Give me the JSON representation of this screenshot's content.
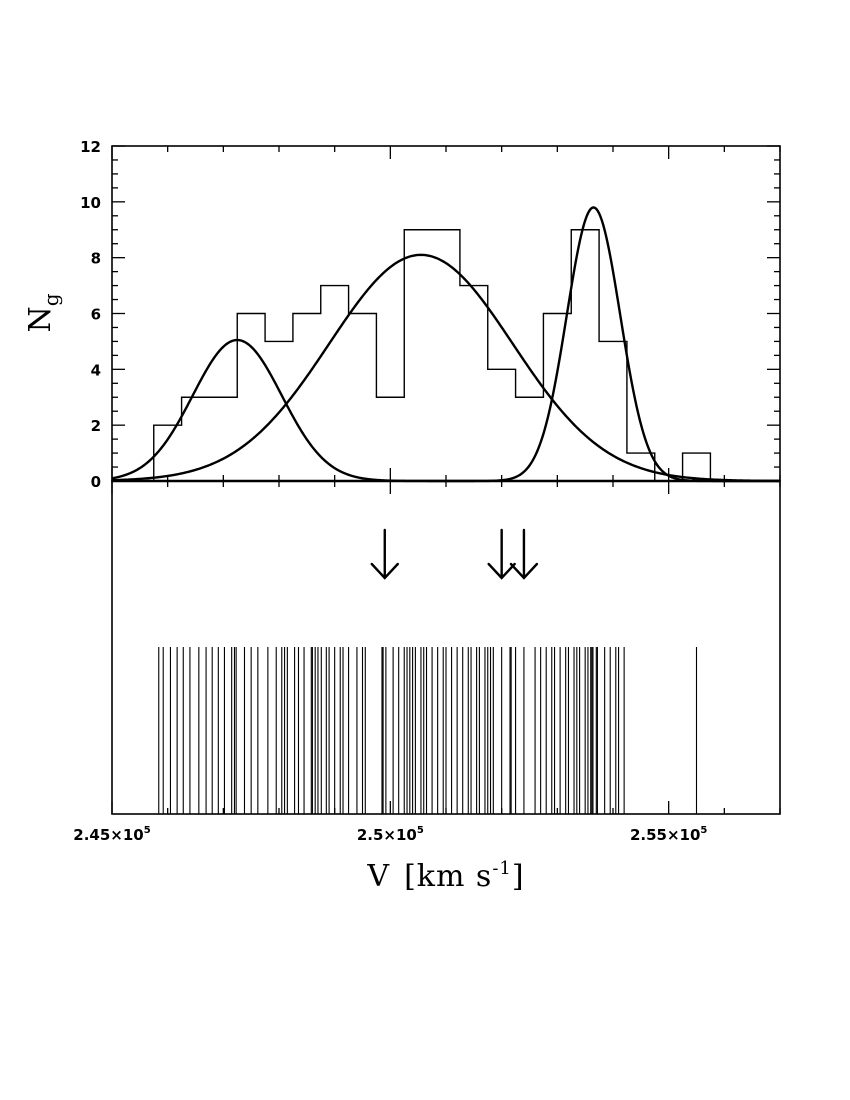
{
  "chart_data": {
    "type": "bar",
    "subtype": "velocity histogram with gaussian fits and rug/stripe density plot",
    "xlabel_main": "V",
    "xlabel_units": "[km s",
    "xlabel_exponent": "-1",
    "xlabel_close": "]",
    "ylabel_main": "N",
    "ylabel_sub": "g",
    "xlim": [
      245000,
      257000
    ],
    "ylim": [
      0,
      12
    ],
    "x_tick_labels": [
      {
        "value": 245000,
        "mantissa": "2.45×10",
        "exp": "5"
      },
      {
        "value": 250000,
        "mantissa": "2.5×10",
        "exp": "5"
      },
      {
        "value": 255000,
        "mantissa": "2.55×10",
        "exp": "5"
      }
    ],
    "y_ticks": [
      0,
      2,
      4,
      6,
      8,
      10,
      12
    ],
    "y_tick_labels": [
      "0",
      "2",
      "4",
      "6",
      "8",
      "10",
      "12"
    ],
    "histogram": {
      "bin_width": 500,
      "bins": [
        {
          "x0": 245750,
          "count": 2
        },
        {
          "x0": 246250,
          "count": 3
        },
        {
          "x0": 246750,
          "count": 3
        },
        {
          "x0": 247250,
          "count": 6
        },
        {
          "x0": 247750,
          "count": 5
        },
        {
          "x0": 248250,
          "count": 6
        },
        {
          "x0": 248750,
          "count": 7
        },
        {
          "x0": 249250,
          "count": 6
        },
        {
          "x0": 249750,
          "count": 3
        },
        {
          "x0": 250250,
          "count": 9
        },
        {
          "x0": 250750,
          "count": 9
        },
        {
          "x0": 251250,
          "count": 7
        },
        {
          "x0": 251750,
          "count": 4
        },
        {
          "x0": 252250,
          "count": 3
        },
        {
          "x0": 252750,
          "count": 6
        },
        {
          "x0": 253250,
          "count": 9
        },
        {
          "x0": 253750,
          "count": 5
        },
        {
          "x0": 254250,
          "count": 1
        },
        {
          "x0": 254750,
          "count": 0
        },
        {
          "x0": 255250,
          "count": 1
        }
      ]
    },
    "gaussians": [
      {
        "mean": 247250,
        "sigma": 800,
        "amplitude": 5.05
      },
      {
        "mean": 250550,
        "sigma": 1650,
        "amplitude": 8.1
      },
      {
        "mean": 253650,
        "sigma": 480,
        "amplitude": 9.8
      }
    ],
    "arrows": [
      249900,
      252000,
      252400
    ],
    "velocities": [
      245840,
      245920,
      246050,
      246170,
      246280,
      246400,
      246560,
      246690,
      246800,
      246910,
      247020,
      247150,
      247200,
      247230,
      247380,
      247500,
      247620,
      247800,
      247950,
      248050,
      248100,
      248150,
      248280,
      248350,
      248450,
      248580,
      248600,
      248650,
      248700,
      248760,
      248850,
      248900,
      249000,
      249100,
      249150,
      249250,
      249400,
      249500,
      249550,
      249850,
      249870,
      249920,
      250050,
      250150,
      250250,
      250300,
      250350,
      250400,
      250450,
      250550,
      250600,
      250650,
      250750,
      250850,
      250950,
      251000,
      251100,
      251200,
      251300,
      251400,
      251450,
      251550,
      251600,
      251700,
      251750,
      251800,
      251850,
      252000,
      252150,
      252170,
      252250,
      252400,
      252600,
      252700,
      252800,
      252900,
      252950,
      253050,
      253150,
      253200,
      253300,
      253350,
      253400,
      253500,
      253550,
      253600,
      253620,
      253640,
      253700,
      253720,
      253850,
      253950,
      254050,
      254100,
      254200,
      255500
    ]
  }
}
